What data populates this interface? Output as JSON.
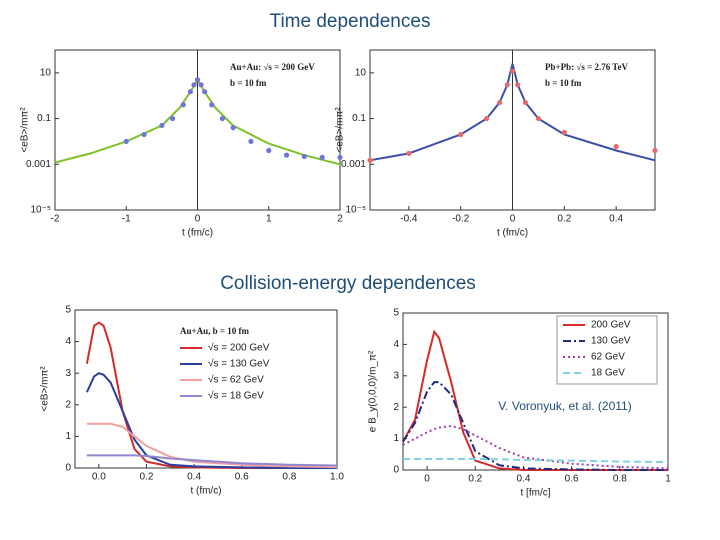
{
  "headings": [
    "Time dependences",
    "Collision-energy dependences"
  ],
  "citation": "V. Voronyuk, et al. (2011)",
  "chart_data": [
    {
      "type": "line",
      "log_y": true,
      "zero_line": true,
      "xlabel": "t (fm/c)",
      "ylabel": "<eB>/mπ²",
      "annotations": [
        "Au+Au: √s = 200 GeV",
        "b = 10 fm"
      ],
      "xlim": [
        -2,
        2
      ],
      "xticks": [
        -2,
        -1,
        0,
        1,
        2
      ],
      "ylim": [
        1e-05,
        100
      ],
      "yticks": [
        {
          "value": 1e-05,
          "label": "10⁻⁵"
        },
        0.001,
        0.1,
        10
      ],
      "series": [
        {
          "name": "model",
          "style": "line",
          "color": "#7cc22a",
          "x": [
            -2,
            -1.5,
            -1,
            -0.5,
            -0.25,
            -0.1,
            0,
            0.1,
            0.25,
            0.5,
            1,
            1.5,
            2
          ],
          "values": [
            0.0012,
            0.003,
            0.01,
            0.05,
            0.3,
            1.5,
            5,
            1.5,
            0.3,
            0.05,
            0.008,
            0.0025,
            0.001
          ]
        },
        {
          "name": "simulation",
          "style": "dots",
          "color": "#6f74d8",
          "x": [
            -1,
            -0.75,
            -0.5,
            -0.35,
            -0.2,
            -0.1,
            -0.05,
            0,
            0.05,
            0.1,
            0.2,
            0.35,
            0.5,
            0.75,
            1,
            1.25,
            1.5,
            1.75,
            2
          ],
          "values": [
            0.01,
            0.02,
            0.05,
            0.1,
            0.4,
            1.5,
            3,
            5,
            3,
            1.5,
            0.4,
            0.1,
            0.04,
            0.01,
            0.004,
            0.0025,
            0.0022,
            0.002,
            0.002
          ]
        }
      ]
    },
    {
      "type": "line",
      "log_y": true,
      "zero_line": true,
      "xlabel": "t (fm/c)",
      "ylabel": "<eB>/mπ²",
      "annotations": [
        "Pb+Pb: √s = 2.76 TeV",
        "b = 10 fm"
      ],
      "xlim": [
        -0.55,
        0.55
      ],
      "xticks": [
        -0.4,
        -0.2,
        0,
        0.2,
        0.4
      ],
      "ylim": [
        1e-05,
        100
      ],
      "yticks": [
        {
          "value": 1e-05,
          "label": "10⁻⁵"
        },
        0.001,
        0.1,
        10
      ],
      "series": [
        {
          "name": "model",
          "style": "line",
          "color": "#3a4fa8",
          "x": [
            -0.55,
            -0.4,
            -0.2,
            -0.1,
            -0.05,
            -0.02,
            0,
            0.02,
            0.05,
            0.1,
            0.2,
            0.4,
            0.55
          ],
          "values": [
            0.0015,
            0.003,
            0.02,
            0.1,
            0.5,
            3,
            25,
            3,
            0.5,
            0.1,
            0.02,
            0.004,
            0.0015
          ]
        },
        {
          "name": "simulation",
          "style": "dots",
          "color": "#e86a6a",
          "x": [
            -0.55,
            -0.4,
            -0.2,
            -0.1,
            -0.05,
            -0.02,
            0,
            0.02,
            0.05,
            0.1,
            0.2,
            0.4,
            0.55
          ],
          "values": [
            0.0015,
            0.003,
            0.02,
            0.1,
            0.5,
            3,
            12,
            3,
            0.5,
            0.1,
            0.025,
            0.006,
            0.004
          ]
        }
      ]
    },
    {
      "type": "line",
      "legend": "upper right",
      "legend_title": "Au+Au, b = 10 fm",
      "xlabel": "t (fm/c)",
      "ylabel": "<eB>/mπ²",
      "xlim": [
        -0.1,
        1.0
      ],
      "xticks": [
        {
          "value": 0,
          "label": "0.0"
        },
        0.2,
        0.4,
        0.6,
        0.8,
        {
          "value": 1,
          "label": "1.0"
        }
      ],
      "ylim": [
        0,
        5
      ],
      "yticks": [
        0,
        1,
        2,
        3,
        4,
        5
      ],
      "series": [
        {
          "name": "√s = 200 GeV",
          "style": "line",
          "color": "#d42a2a",
          "x": [
            -0.05,
            -0.02,
            0,
            0.02,
            0.05,
            0.1,
            0.15,
            0.2,
            0.3,
            0.4,
            0.6,
            0.8,
            1.0
          ],
          "values": [
            3.3,
            4.5,
            4.6,
            4.5,
            3.8,
            1.8,
            0.6,
            0.2,
            0.05,
            0.02,
            0,
            0,
            0
          ]
        },
        {
          "name": "√s = 130 GeV",
          "style": "line",
          "color": "#2a3f9e",
          "x": [
            -0.05,
            -0.02,
            0,
            0.02,
            0.05,
            0.1,
            0.15,
            0.2,
            0.3,
            0.4,
            0.6,
            0.8,
            1.0
          ],
          "values": [
            2.4,
            2.9,
            3.0,
            2.95,
            2.7,
            1.8,
            0.9,
            0.4,
            0.1,
            0.05,
            0.02,
            0,
            0
          ]
        },
        {
          "name": "√s = 62 GeV",
          "style": "line",
          "color": "#f0a0a0",
          "x": [
            -0.05,
            -0.02,
            0,
            0.02,
            0.05,
            0.1,
            0.15,
            0.2,
            0.3,
            0.4,
            0.6,
            0.8,
            1.0
          ],
          "values": [
            1.4,
            1.4,
            1.4,
            1.4,
            1.4,
            1.3,
            1.0,
            0.7,
            0.35,
            0.2,
            0.1,
            0.05,
            0.03
          ]
        },
        {
          "name": "√s = 18 GeV",
          "style": "line",
          "color": "#9088d0",
          "x": [
            -0.05,
            -0.02,
            0,
            0.02,
            0.05,
            0.1,
            0.15,
            0.2,
            0.3,
            0.4,
            0.6,
            0.8,
            1.0
          ],
          "values": [
            0.4,
            0.4,
            0.4,
            0.4,
            0.4,
            0.4,
            0.4,
            0.38,
            0.3,
            0.25,
            0.15,
            0.1,
            0.08
          ]
        }
      ]
    },
    {
      "type": "line",
      "legend": "upper right",
      "xlabel": "t [fm/c]",
      "ylabel": "e B_y(0,0,0)/m_π²",
      "xlim": [
        -0.1,
        1
      ],
      "xticks": [
        0,
        0.2,
        0.4,
        0.6,
        0.8,
        1
      ],
      "ylim": [
        0,
        5
      ],
      "yticks": [
        0,
        1,
        2,
        3,
        4,
        5
      ],
      "series": [
        {
          "name": "200 GeV",
          "style": "line",
          "color": "#d42a2a",
          "x": [
            -0.1,
            -0.05,
            0,
            0.03,
            0.05,
            0.1,
            0.15,
            0.2,
            0.3,
            0.4,
            0.6,
            0.8,
            1
          ],
          "values": [
            0.9,
            1.6,
            3.5,
            4.4,
            4.2,
            2.8,
            1.2,
            0.3,
            0.05,
            0,
            0,
            0,
            0
          ]
        },
        {
          "name": "130 GeV",
          "style": "dashdot",
          "color": "#1f2a80",
          "x": [
            -0.1,
            -0.05,
            0,
            0.03,
            0.05,
            0.1,
            0.15,
            0.2,
            0.3,
            0.4,
            0.6,
            0.8,
            1
          ],
          "values": [
            0.9,
            1.5,
            2.5,
            2.8,
            2.8,
            2.4,
            1.5,
            0.6,
            0.15,
            0.05,
            0.02,
            0,
            0
          ]
        },
        {
          "name": "62 GeV",
          "style": "dotted",
          "color": "#a040b0",
          "x": [
            -0.1,
            -0.05,
            0,
            0.03,
            0.05,
            0.1,
            0.15,
            0.2,
            0.3,
            0.4,
            0.6,
            0.8,
            1
          ],
          "values": [
            0.8,
            1.0,
            1.2,
            1.3,
            1.35,
            1.4,
            1.3,
            1.1,
            0.7,
            0.4,
            0.2,
            0.1,
            0.05
          ]
        },
        {
          "name": "18 GeV",
          "style": "dashed",
          "color": "#7fd0e0",
          "x": [
            -0.1,
            -0.05,
            0,
            0.03,
            0.05,
            0.1,
            0.15,
            0.2,
            0.3,
            0.4,
            0.6,
            0.8,
            1
          ],
          "values": [
            0.35,
            0.35,
            0.35,
            0.35,
            0.35,
            0.35,
            0.35,
            0.35,
            0.34,
            0.32,
            0.3,
            0.27,
            0.25
          ]
        }
      ]
    }
  ]
}
